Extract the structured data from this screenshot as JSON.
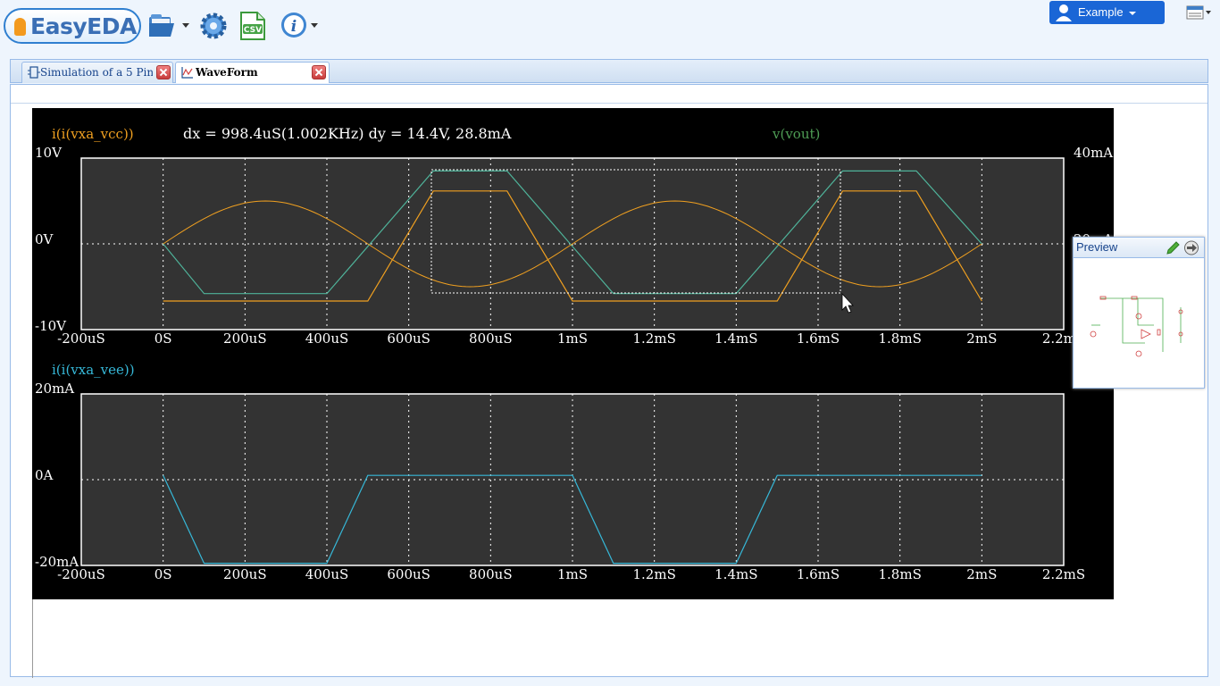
{
  "app": {
    "logo_text": "EasyEDA"
  },
  "toolbar": {
    "icons": [
      "folder-open-icon",
      "gear-icon",
      "csv-export-icon",
      "info-icon"
    ],
    "csv_label": "CSV",
    "user_label": "Example"
  },
  "tabs": [
    {
      "label": "Simulation of a 5 Pin ...",
      "icon": "schematic-icon",
      "active": false
    },
    {
      "label": "WaveForm",
      "icon": "waveform-icon",
      "active": true
    }
  ],
  "waveform": {
    "top_plot": {
      "trace_left_label": "i(i(vxa_vcc))",
      "trace_right_label": "v(vout)",
      "measurement": "dx = 998.4uS(1.002KHz) dy = 14.4V, 28.8mA",
      "y_left_ticks": [
        "10V",
        "0V",
        "-10V"
      ],
      "y_right_ticks": [
        "40mA",
        "20mA"
      ],
      "x_ticks": [
        "-200uS",
        "0S",
        "200uS",
        "400uS",
        "600uS",
        "800uS",
        "1mS",
        "1.2mS",
        "1.4mS",
        "1.6mS",
        "1.8mS",
        "2mS",
        "2.2mS"
      ]
    },
    "bottom_plot": {
      "trace_label": "i(i(vxa_vee))",
      "y_ticks": [
        "20mA",
        "0A",
        "-20mA"
      ],
      "x_ticks": [
        "-200uS",
        "0S",
        "200uS",
        "400uS",
        "600uS",
        "800uS",
        "1mS",
        "1.2mS",
        "1.4mS",
        "1.6mS",
        "1.8mS",
        "2mS",
        "2.2mS"
      ]
    },
    "colors": {
      "background": "#000000",
      "plot_area": "#333333",
      "vcc_trace": "#f0a020",
      "vout_trace": "#4fb39a",
      "vee_trace": "#36b8d8",
      "vout_label": "#4f9e55",
      "text": "#ffffff"
    }
  },
  "preview": {
    "title": "Preview"
  },
  "chart_data": [
    {
      "type": "line",
      "title": "",
      "x_unit": "s",
      "xlim": [
        -0.0002,
        0.0022
      ],
      "ylim": [
        -10,
        10
      ],
      "y2lim": [
        -20,
        40
      ],
      "grid": true,
      "series": [
        {
          "name": "i(i(vxa_vcc))",
          "axis": "right",
          "x": [
            0,
            0.0005,
            0.00066,
            0.00084,
            0.001,
            0.0015,
            0.00166,
            0.00184,
            0.002
          ],
          "y": [
            -10,
            -10,
            28.5,
            28.5,
            -10,
            -10,
            28.5,
            28.5,
            -10
          ]
        },
        {
          "name": "v(vout)",
          "axis": "left",
          "x": [
            0,
            0.0001,
            0.0004,
            0.00066,
            0.00084,
            0.0011,
            0.0014,
            0.00166,
            0.00184,
            0.002
          ],
          "y": [
            0,
            -5.8,
            -5.8,
            8.5,
            8.5,
            -5.8,
            -5.8,
            8.5,
            8.5,
            0
          ]
        },
        {
          "name": "",
          "axis": "left",
          "x": [
            0,
            0.00025,
            0.0005,
            0.00075,
            0.001,
            0.00125,
            0.0015,
            0.00175,
            0.002
          ],
          "y": [
            0,
            5,
            0,
            -5,
            0,
            5,
            0,
            -5,
            0
          ]
        }
      ]
    },
    {
      "type": "line",
      "title": "",
      "x_unit": "s",
      "xlim": [
        -0.0002,
        0.0022
      ],
      "ylim": [
        -20,
        20
      ],
      "grid": true,
      "series": [
        {
          "name": "i(i(vxa_vee))",
          "x": [
            0,
            0.0001,
            0.0004,
            0.0005,
            0.001,
            0.0011,
            0.0014,
            0.0015,
            0.002
          ],
          "y": [
            1,
            -19.5,
            -19.5,
            1,
            1,
            -19.5,
            -19.5,
            1,
            1
          ]
        }
      ]
    }
  ]
}
